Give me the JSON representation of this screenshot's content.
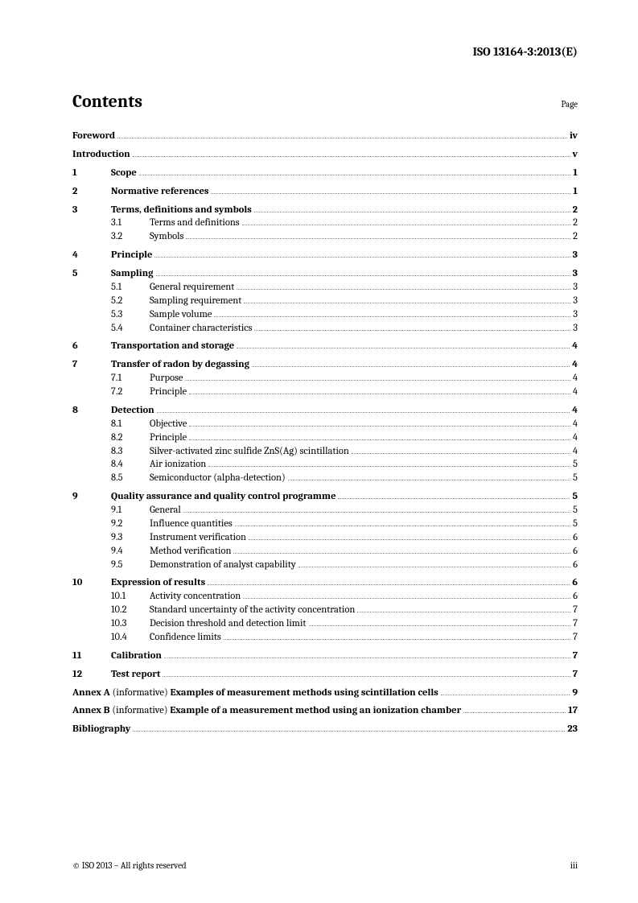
{
  "doc_id": "ISO 13164-3:2013(E)",
  "contents_label": "Contents",
  "page_label": "Page",
  "front": [
    {
      "title": "Foreword",
      "page": "iv"
    },
    {
      "title": "Introduction",
      "page": "v"
    }
  ],
  "sections": [
    {
      "num": "1",
      "title": "Scope",
      "page": "1",
      "subs": []
    },
    {
      "num": "2",
      "title": "Normative references",
      "page": "1",
      "subs": []
    },
    {
      "num": "3",
      "title": "Terms, definitions and symbols",
      "page": "2",
      "subs": [
        {
          "num": "3.1",
          "title": "Terms and definitions",
          "page": "2"
        },
        {
          "num": "3.2",
          "title": "Symbols",
          "page": "2"
        }
      ]
    },
    {
      "num": "4",
      "title": "Principle",
      "page": "3",
      "subs": []
    },
    {
      "num": "5",
      "title": "Sampling",
      "page": "3",
      "subs": [
        {
          "num": "5.1",
          "title": "General requirement",
          "page": "3"
        },
        {
          "num": "5.2",
          "title": "Sampling requirement",
          "page": "3"
        },
        {
          "num": "5.3",
          "title": "Sample volume",
          "page": "3"
        },
        {
          "num": "5.4",
          "title": "Container characteristics",
          "page": "3"
        }
      ]
    },
    {
      "num": "6",
      "title": "Transportation and storage",
      "page": "4",
      "subs": []
    },
    {
      "num": "7",
      "title": "Transfer of radon by degassing",
      "page": "4",
      "subs": [
        {
          "num": "7.1",
          "title": "Purpose",
          "page": "4"
        },
        {
          "num": "7.2",
          "title": "Principle",
          "page": "4"
        }
      ]
    },
    {
      "num": "8",
      "title": "Detection",
      "page": "4",
      "subs": [
        {
          "num": "8.1",
          "title": "Objective",
          "page": "4"
        },
        {
          "num": "8.2",
          "title": "Principle",
          "page": "4"
        },
        {
          "num": "8.3",
          "title": "Silver-activated zinc sulfide ZnS(Ag) scintillation",
          "page": "4"
        },
        {
          "num": "8.4",
          "title": "Air ionization",
          "page": "5"
        },
        {
          "num": "8.5",
          "title": "Semiconductor (alpha-detection)",
          "page": "5"
        }
      ]
    },
    {
      "num": "9",
      "title": "Quality assurance and quality control programme",
      "page": "5",
      "subs": [
        {
          "num": "9.1",
          "title": "General",
          "page": "5"
        },
        {
          "num": "9.2",
          "title": "Influence quantities",
          "page": "5"
        },
        {
          "num": "9.3",
          "title": "Instrument verification",
          "page": "6"
        },
        {
          "num": "9.4",
          "title": "Method verification",
          "page": "6"
        },
        {
          "num": "9.5",
          "title": "Demonstration of analyst capability",
          "page": "6"
        }
      ]
    },
    {
      "num": "10",
      "title": "Expression of results",
      "page": "6",
      "subs": [
        {
          "num": "10.1",
          "title": "Activity concentration",
          "page": "6"
        },
        {
          "num": "10.2",
          "title": "Standard uncertainty of the activity concentration",
          "page": "7"
        },
        {
          "num": "10.3",
          "title": "Decision threshold and detection limit",
          "page": "7"
        },
        {
          "num": "10.4",
          "title": "Confidence limits",
          "page": "7"
        }
      ]
    },
    {
      "num": "11",
      "title": "Calibration",
      "page": "7",
      "subs": []
    },
    {
      "num": "12",
      "title": "Test report",
      "page": "7",
      "subs": []
    }
  ],
  "annexes": [
    {
      "label": "Annex A",
      "info": "(informative)",
      "title": "Examples of measurement methods using scintillation cells",
      "page": "9"
    },
    {
      "label": "Annex B",
      "info": "(informative)",
      "title": "Example of a measurement method using an ionization chamber",
      "page": "17"
    }
  ],
  "bibliography": {
    "title": "Bibliography",
    "page": "23"
  },
  "footer_left": "© ISO 2013 – All rights reserved",
  "footer_right": "iii"
}
